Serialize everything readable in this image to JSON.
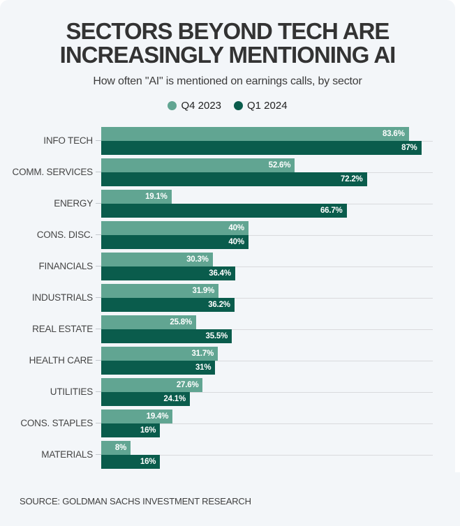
{
  "header": {
    "title_lines": [
      "SECTORS BEYOND TECH ARE",
      "INCREASINGLY MENTIONING AI"
    ],
    "subtitle": "How often \"AI\" is mentioned on earnings calls, by sector"
  },
  "legend": {
    "items": [
      {
        "label": "Q4 2023",
        "color": "#61a592"
      },
      {
        "label": "Q1 2024",
        "color": "#0a5c4c"
      }
    ]
  },
  "source": {
    "text": "SOURCE: GOLDMAN SACHS INVESTMENT RESEARCH"
  },
  "colors": {
    "q4_2023_bar": "#61a592",
    "q1_2024_bar": "#0a5c4c",
    "card_background": "#f3f6f9",
    "gridline": "#d9dadd",
    "title_text": "#333333",
    "value_label_text": "#ffffff"
  },
  "chart_data": {
    "type": "bar",
    "orientation": "horizontal",
    "title": "SECTORS BEYOND TECH ARE INCREASINGLY MENTIONING AI",
    "subtitle": "How often \"AI\" is mentioned on earnings calls, by sector",
    "xlabel": "",
    "ylabel": "",
    "xlim": [
      0,
      92.2
    ],
    "grid": "row-separator-lines",
    "legend_position": "top-center",
    "value_labels_position": "inside-end",
    "categories": [
      "INFO TECH",
      "COMM. SERVICES",
      "ENERGY",
      "CONS. DISC.",
      "FINANCIALS",
      "INDUSTRIALS",
      "REAL ESTATE",
      "HEALTH CARE",
      "UTILITIES",
      "CONS. STAPLES",
      "MATERIALS"
    ],
    "series": [
      {
        "name": "Q4 2023",
        "color": "#61a592",
        "values": [
          83.6,
          52.6,
          19.1,
          40,
          30.3,
          31.9,
          25.8,
          31.7,
          27.6,
          19.4,
          8
        ],
        "labels": [
          "83.6%",
          "52.6%",
          "19.1%",
          "40%",
          "30.3%",
          "31.9%",
          "25.8%",
          "31.7%",
          "27.6%",
          "19.4%",
          "8%"
        ]
      },
      {
        "name": "Q1 2024",
        "color": "#0a5c4c",
        "values": [
          87,
          72.2,
          66.7,
          40,
          36.4,
          36.2,
          35.5,
          31,
          24.1,
          16,
          16
        ],
        "labels": [
          "87%",
          "72.2%",
          "66.7%",
          "40%",
          "36.4%",
          "36.2%",
          "35.5%",
          "31%",
          "24.1%",
          "16%",
          "16%"
        ]
      }
    ]
  }
}
